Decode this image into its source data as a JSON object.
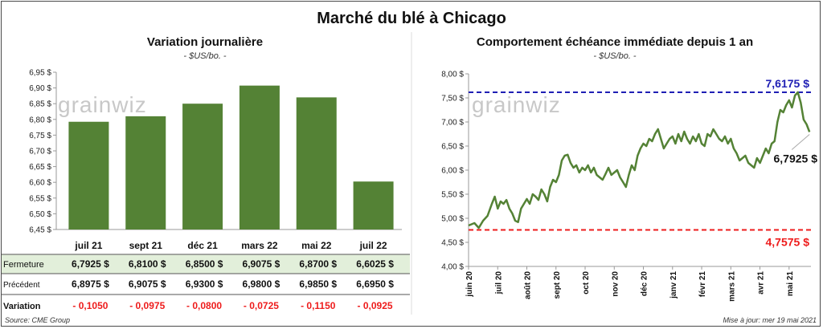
{
  "title": "Marché du blé à Chicago",
  "left": {
    "title": "Variation  journalière",
    "unit": "- $US/bo. -",
    "watermark": "grainwiz"
  },
  "right": {
    "title": "Comportement  échéance immédiate depuis 1 an",
    "unit": "- $US/bo. -",
    "watermark": "grainwiz"
  },
  "table": {
    "rows": [
      {
        "label": "Fermeture",
        "values": [
          "6,7925  $",
          "6,8100  $",
          "6,8500  $",
          "6,9075  $",
          "6,8700  $",
          "6,6025  $"
        ]
      },
      {
        "label": "Précédent",
        "values": [
          "6,8975  $",
          "6,9075  $",
          "6,9300  $",
          "6,9800  $",
          "6,9850  $",
          "6,6950  $"
        ]
      },
      {
        "label": "Variation",
        "values": [
          "- 0,1050",
          "- 0,0975",
          "- 0,0800",
          "- 0,0725",
          "- 0,1150",
          "- 0,0925"
        ]
      }
    ]
  },
  "footer": {
    "source": "Source: CME Group",
    "updated": "Mise à jour: mer 19 mai 2021"
  },
  "colors": {
    "bar": "#548235",
    "line": "#548235",
    "high": "#1f1fb4",
    "low": "#ee1c1c",
    "row_highlight": "#e2efda"
  },
  "chart_data": [
    {
      "type": "bar",
      "title": "Variation  journalière",
      "categories": [
        "juil 21",
        "sept 21",
        "déc 21",
        "mars 22",
        "mai 22",
        "juil 22"
      ],
      "values": [
        6.7925,
        6.81,
        6.85,
        6.9075,
        6.87,
        6.6025
      ],
      "ylim": [
        6.45,
        6.95
      ],
      "yticks": [
        "6,45 $",
        "6,50 $",
        "6,55 $",
        "6,60 $",
        "6,65 $",
        "6,70 $",
        "6,75 $",
        "6,80 $",
        "6,85 $",
        "6,90 $",
        "6,95 $"
      ],
      "grid": false
    },
    {
      "type": "line",
      "title": "Comportement  échéance immédiate depuis 1 an",
      "ylim": [
        4.0,
        8.0
      ],
      "yticks": [
        "4,00 $",
        "4,50 $",
        "5,00 $",
        "5,50 $",
        "6,00 $",
        "6,50 $",
        "7,00 $",
        "7,50 $",
        "8,00 $"
      ],
      "xticks": [
        "juin 20",
        "juil 20",
        "août 20",
        "sept 20",
        "oct 20",
        "nov 20",
        "déc 20",
        "janv 21",
        "févr 21",
        "mars 21",
        "avr 21",
        "mai 21"
      ],
      "grid": false,
      "high": {
        "value": 7.6175,
        "label": "7,6175  $"
      },
      "low": {
        "value": 4.7575,
        "label": "4,7575  $"
      },
      "last": {
        "value": 6.7925,
        "label": "6,7925  $"
      },
      "x": [
        0,
        0.2,
        0.35,
        0.5,
        0.65,
        0.8,
        0.9,
        1,
        1.1,
        1.2,
        1.3,
        1.4,
        1.5,
        1.6,
        1.7,
        1.8,
        1.9,
        2,
        2.1,
        2.2,
        2.3,
        2.4,
        2.5,
        2.6,
        2.7,
        2.8,
        2.9,
        3,
        3.1,
        3.2,
        3.3,
        3.4,
        3.5,
        3.6,
        3.7,
        3.8,
        3.9,
        4,
        4.1,
        4.2,
        4.3,
        4.4,
        4.5,
        4.6,
        4.7,
        4.8,
        4.9,
        5,
        5.1,
        5.2,
        5.3,
        5.4,
        5.5,
        5.6,
        5.7,
        5.8,
        5.9,
        6,
        6.1,
        6.2,
        6.3,
        6.4,
        6.5,
        6.6,
        6.7,
        6.8,
        6.9,
        7,
        7.1,
        7.2,
        7.3,
        7.4,
        7.5,
        7.6,
        7.7,
        7.8,
        7.9,
        8,
        8.1,
        8.2,
        8.3,
        8.4,
        8.5,
        8.6,
        8.7,
        8.8,
        8.9,
        9,
        9.1,
        9.2,
        9.3,
        9.4,
        9.5,
        9.6,
        9.7,
        9.8,
        9.9,
        10,
        10.1,
        10.2,
        10.3,
        10.4,
        10.5,
        10.6,
        10.7,
        10.8,
        10.9,
        11,
        11.1,
        11.2,
        11.3,
        11.4,
        11.5,
        11.6,
        11.7
      ],
      "values": [
        4.85,
        4.9,
        4.8,
        4.95,
        5.05,
        5.3,
        5.45,
        5.2,
        5.35,
        5.3,
        5.38,
        5.2,
        5.1,
        4.95,
        4.92,
        5.2,
        5.3,
        5.4,
        5.3,
        5.5,
        5.45,
        5.38,
        5.6,
        5.5,
        5.35,
        5.65,
        5.8,
        5.75,
        5.9,
        6.2,
        6.3,
        6.32,
        6.15,
        6.05,
        6.1,
        5.95,
        6.05,
        6.0,
        6.1,
        5.95,
        6.05,
        5.9,
        5.85,
        5.8,
        5.92,
        6.05,
        5.9,
        5.95,
        6.0,
        5.85,
        5.75,
        5.65,
        5.9,
        6.1,
        6.0,
        6.3,
        6.45,
        6.55,
        6.5,
        6.65,
        6.6,
        6.75,
        6.85,
        6.65,
        6.45,
        6.55,
        6.65,
        6.7,
        6.55,
        6.75,
        6.6,
        6.8,
        6.65,
        6.55,
        6.7,
        6.6,
        6.75,
        6.55,
        6.5,
        6.75,
        6.7,
        6.85,
        6.75,
        6.65,
        6.6,
        6.7,
        6.55,
        6.65,
        6.45,
        6.35,
        6.2,
        6.25,
        6.3,
        6.15,
        6.1,
        6.05,
        6.25,
        6.15,
        6.3,
        6.45,
        6.35,
        6.55,
        6.6,
        7.0,
        7.25,
        7.2,
        7.35,
        7.45,
        7.3,
        7.55,
        7.6175,
        7.4,
        7.05,
        6.95,
        6.7925
      ]
    }
  ]
}
